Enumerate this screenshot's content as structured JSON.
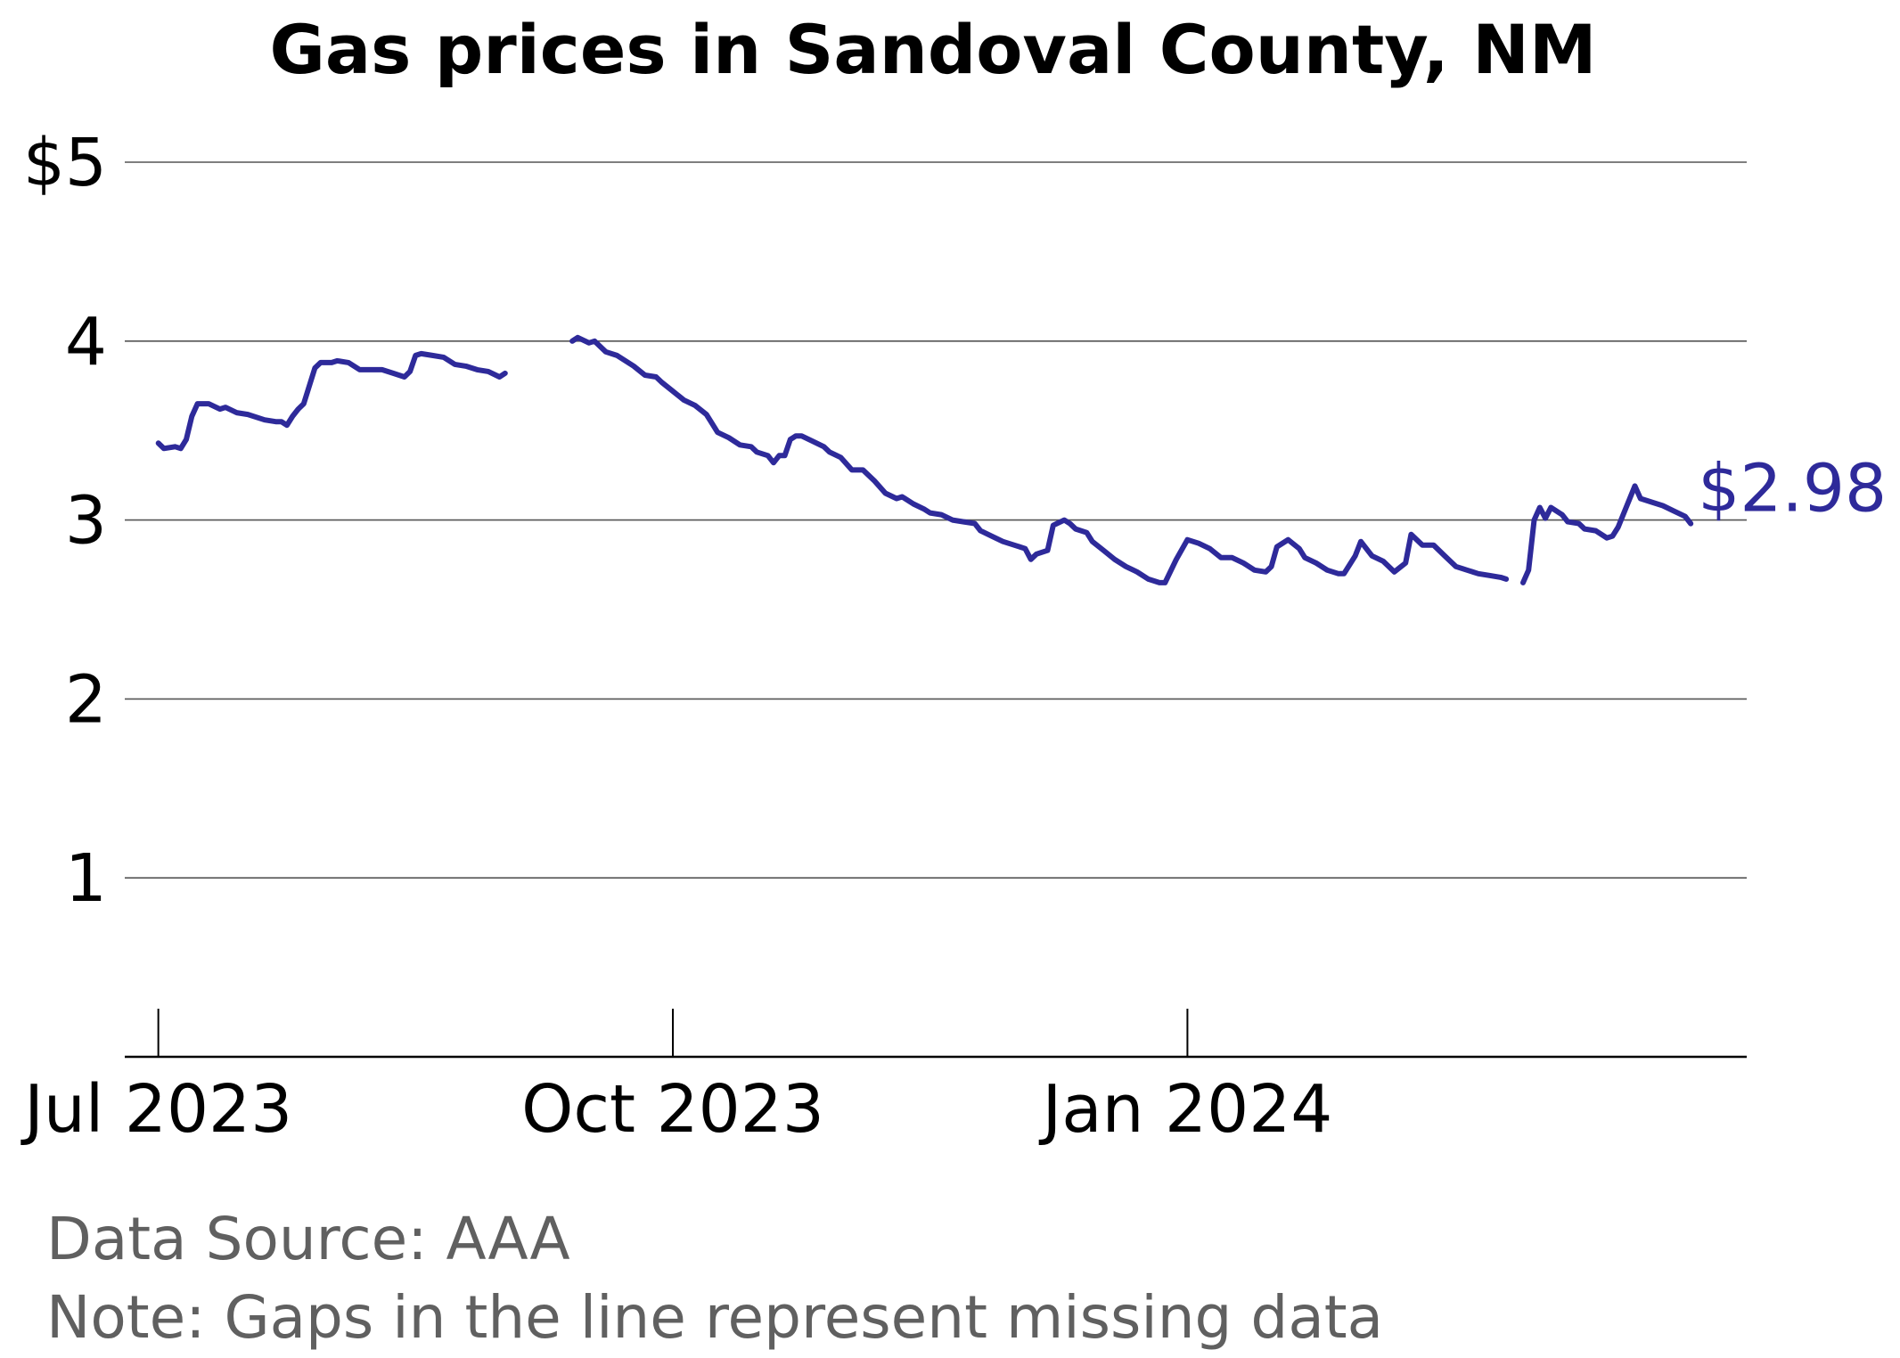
{
  "chart_data": {
    "type": "line",
    "title": "Gas prices in Sandoval County, NM",
    "xlabel": "",
    "ylabel": "",
    "ylim": [
      0,
      5
    ],
    "xlim": [
      "2023-06-25",
      "2024-04-10"
    ],
    "yticks": [
      {
        "value": 1,
        "label": "1"
      },
      {
        "value": 2,
        "label": "2"
      },
      {
        "value": 3,
        "label": "3"
      },
      {
        "value": 4,
        "label": "4"
      },
      {
        "value": 5,
        "label": "$5"
      }
    ],
    "xticks": [
      {
        "date": "2023-07-01",
        "label": "Jul 2023"
      },
      {
        "date": "2023-10-01",
        "label": "Oct 2023"
      },
      {
        "date": "2024-01-01",
        "label": "Jan 2024"
      }
    ],
    "grid": true,
    "line_color": "#2e2a9a",
    "end_label": "$2.98",
    "series": [
      {
        "segments": [
          [
            [
              "2023-07-01",
              3.43
            ],
            [
              "2023-07-02",
              3.4
            ],
            [
              "2023-07-04",
              3.41
            ],
            [
              "2023-07-05",
              3.4
            ],
            [
              "2023-07-06",
              3.45
            ],
            [
              "2023-07-07",
              3.58
            ],
            [
              "2023-07-08",
              3.65
            ],
            [
              "2023-07-10",
              3.65
            ],
            [
              "2023-07-12",
              3.62
            ],
            [
              "2023-07-13",
              3.63
            ],
            [
              "2023-07-15",
              3.6
            ],
            [
              "2023-07-17",
              3.59
            ],
            [
              "2023-07-20",
              3.56
            ],
            [
              "2023-07-22",
              3.55
            ],
            [
              "2023-07-23",
              3.55
            ],
            [
              "2023-07-24",
              3.53
            ],
            [
              "2023-07-25",
              3.58
            ],
            [
              "2023-07-26",
              3.62
            ],
            [
              "2023-07-27",
              3.65
            ],
            [
              "2023-07-28",
              3.75
            ],
            [
              "2023-07-29",
              3.85
            ],
            [
              "2023-07-30",
              3.88
            ],
            [
              "2023-08-01",
              3.88
            ],
            [
              "2023-08-02",
              3.89
            ],
            [
              "2023-08-04",
              3.88
            ],
            [
              "2023-08-06",
              3.84
            ],
            [
              "2023-08-08",
              3.84
            ],
            [
              "2023-08-10",
              3.84
            ],
            [
              "2023-08-12",
              3.82
            ],
            [
              "2023-08-14",
              3.8
            ],
            [
              "2023-08-15",
              3.83
            ],
            [
              "2023-08-16",
              3.92
            ],
            [
              "2023-08-17",
              3.93
            ],
            [
              "2023-08-19",
              3.92
            ],
            [
              "2023-08-21",
              3.91
            ],
            [
              "2023-08-23",
              3.87
            ],
            [
              "2023-08-25",
              3.86
            ],
            [
              "2023-08-27",
              3.84
            ],
            [
              "2023-08-29",
              3.83
            ],
            [
              "2023-08-31",
              3.8
            ],
            [
              "2023-09-01",
              3.82
            ]
          ],
          [
            [
              "2023-09-13",
              4.0
            ],
            [
              "2023-09-14",
              4.02
            ],
            [
              "2023-09-16",
              3.99
            ],
            [
              "2023-09-17",
              4.0
            ],
            [
              "2023-09-19",
              3.94
            ],
            [
              "2023-09-21",
              3.92
            ],
            [
              "2023-09-24",
              3.86
            ],
            [
              "2023-09-26",
              3.81
            ],
            [
              "2023-09-28",
              3.8
            ],
            [
              "2023-09-29",
              3.77
            ],
            [
              "2023-10-01",
              3.72
            ],
            [
              "2023-10-03",
              3.67
            ],
            [
              "2023-10-05",
              3.64
            ],
            [
              "2023-10-07",
              3.59
            ],
            [
              "2023-10-08",
              3.54
            ],
            [
              "2023-10-09",
              3.49
            ],
            [
              "2023-10-11",
              3.46
            ],
            [
              "2023-10-13",
              3.42
            ],
            [
              "2023-10-15",
              3.41
            ],
            [
              "2023-10-16",
              3.38
            ],
            [
              "2023-10-18",
              3.36
            ],
            [
              "2023-10-19",
              3.32
            ],
            [
              "2023-10-20",
              3.36
            ],
            [
              "2023-10-21",
              3.36
            ],
            [
              "2023-10-22",
              3.45
            ],
            [
              "2023-10-23",
              3.47
            ],
            [
              "2023-10-24",
              3.47
            ],
            [
              "2023-10-26",
              3.44
            ],
            [
              "2023-10-28",
              3.41
            ],
            [
              "2023-10-29",
              3.38
            ],
            [
              "2023-10-31",
              3.35
            ],
            [
              "2023-11-02",
              3.28
            ],
            [
              "2023-11-04",
              3.28
            ],
            [
              "2023-11-06",
              3.22
            ],
            [
              "2023-11-08",
              3.15
            ],
            [
              "2023-11-10",
              3.12
            ],
            [
              "2023-11-11",
              3.13
            ],
            [
              "2023-11-13",
              3.09
            ],
            [
              "2023-11-15",
              3.06
            ],
            [
              "2023-11-16",
              3.04
            ],
            [
              "2023-11-18",
              3.03
            ],
            [
              "2023-11-20",
              3.0
            ],
            [
              "2023-11-22",
              2.99
            ],
            [
              "2023-11-24",
              2.98
            ],
            [
              "2023-11-25",
              2.94
            ],
            [
              "2023-11-27",
              2.91
            ],
            [
              "2023-11-29",
              2.88
            ],
            [
              "2023-12-01",
              2.86
            ],
            [
              "2023-12-03",
              2.84
            ],
            [
              "2023-12-04",
              2.78
            ],
            [
              "2023-12-05",
              2.81
            ],
            [
              "2023-12-07",
              2.83
            ],
            [
              "2023-12-08",
              2.97
            ],
            [
              "2023-12-10",
              3.0
            ],
            [
              "2023-12-11",
              2.98
            ],
            [
              "2023-12-12",
              2.95
            ],
            [
              "2023-12-14",
              2.93
            ],
            [
              "2023-12-15",
              2.88
            ],
            [
              "2023-12-17",
              2.83
            ],
            [
              "2023-12-19",
              2.78
            ],
            [
              "2023-12-21",
              2.74
            ],
            [
              "2023-12-23",
              2.71
            ],
            [
              "2023-12-25",
              2.67
            ],
            [
              "2023-12-26",
              2.66
            ],
            [
              "2023-12-27",
              2.65
            ],
            [
              "2023-12-28",
              2.65
            ],
            [
              "2023-12-30",
              2.78
            ],
            [
              "2024-01-01",
              2.89
            ],
            [
              "2024-01-03",
              2.87
            ],
            [
              "2024-01-05",
              2.84
            ],
            [
              "2024-01-07",
              2.79
            ],
            [
              "2024-01-09",
              2.79
            ],
            [
              "2024-01-11",
              2.76
            ],
            [
              "2024-01-13",
              2.72
            ],
            [
              "2024-01-15",
              2.71
            ],
            [
              "2024-01-16",
              2.74
            ],
            [
              "2024-01-17",
              2.85
            ],
            [
              "2024-01-19",
              2.89
            ],
            [
              "2024-01-21",
              2.84
            ],
            [
              "2024-01-22",
              2.79
            ],
            [
              "2024-01-24",
              2.76
            ],
            [
              "2024-01-26",
              2.72
            ],
            [
              "2024-01-28",
              2.7
            ],
            [
              "2024-01-29",
              2.7
            ],
            [
              "2024-01-31",
              2.8
            ],
            [
              "2024-02-01",
              2.88
            ],
            [
              "2024-02-03",
              2.8
            ],
            [
              "2024-02-05",
              2.77
            ],
            [
              "2024-02-07",
              2.71
            ],
            [
              "2024-02-09",
              2.76
            ],
            [
              "2024-02-10",
              2.92
            ],
            [
              "2024-02-12",
              2.86
            ],
            [
              "2024-02-14",
              2.86
            ],
            [
              "2024-02-16",
              2.8
            ],
            [
              "2024-02-18",
              2.74
            ],
            [
              "2024-02-20",
              2.72
            ],
            [
              "2024-02-22",
              2.7
            ],
            [
              "2024-02-24",
              2.69
            ],
            [
              "2024-02-26",
              2.68
            ],
            [
              "2024-02-27",
              2.67
            ]
          ],
          [
            [
              "2024-03-01",
              2.65
            ],
            [
              "2024-03-02",
              2.72
            ],
            [
              "2024-03-03",
              3.0
            ],
            [
              "2024-03-04",
              3.07
            ],
            [
              "2024-03-05",
              3.01
            ],
            [
              "2024-03-06",
              3.07
            ],
            [
              "2024-03-08",
              3.03
            ],
            [
              "2024-03-09",
              2.99
            ],
            [
              "2024-03-11",
              2.98
            ],
            [
              "2024-03-12",
              2.95
            ],
            [
              "2024-03-14",
              2.94
            ],
            [
              "2024-03-16",
              2.9
            ],
            [
              "2024-03-17",
              2.91
            ],
            [
              "2024-03-18",
              2.96
            ],
            [
              "2024-03-21",
              3.19
            ],
            [
              "2024-03-22",
              3.12
            ],
            [
              "2024-03-24",
              3.1
            ],
            [
              "2024-03-26",
              3.08
            ],
            [
              "2024-03-28",
              3.05
            ],
            [
              "2024-03-30",
              3.02
            ],
            [
              "2024-03-31",
              2.98
            ]
          ]
        ]
      }
    ]
  },
  "footer": {
    "source": "Data Source: AAA",
    "note": "Note: Gaps in the line represent missing data"
  }
}
